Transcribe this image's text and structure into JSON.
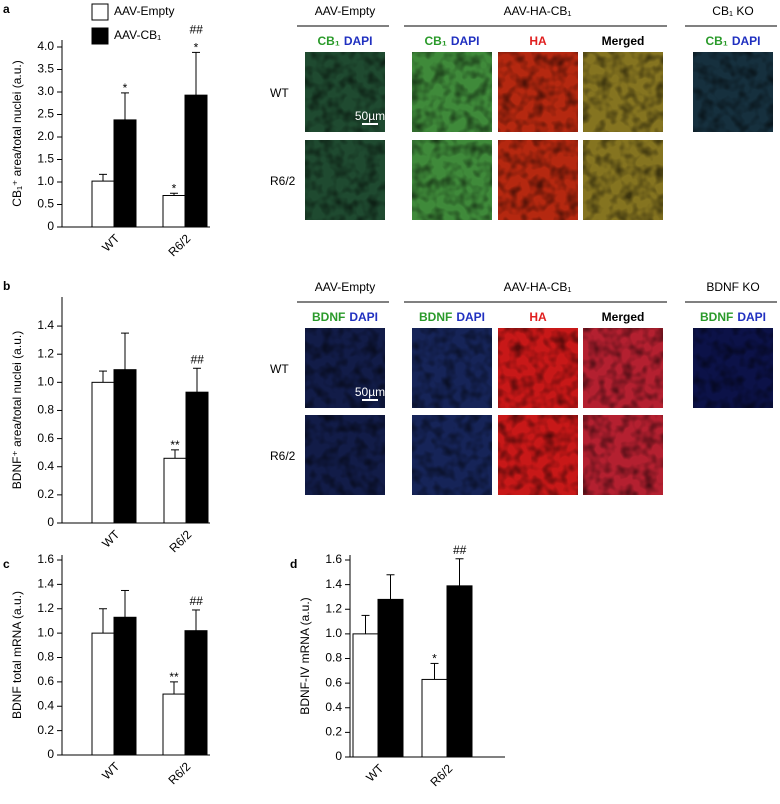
{
  "chart_data": [
    {
      "type": "bar",
      "panel": "a",
      "ylabel": "CB₁⁺ area/total nuclei (a.u.)",
      "categories": [
        "WT",
        "R6/2"
      ],
      "series": [
        {
          "name": "AAV-Empty",
          "color": "#ffffff",
          "values": [
            1.02,
            0.7
          ],
          "errors": [
            0.15,
            0.05
          ],
          "annotations": [
            [],
            [
              "*"
            ]
          ]
        },
        {
          "name": "AAV-CB₁",
          "color": "#000000",
          "values": [
            2.38,
            2.93
          ],
          "errors": [
            0.6,
            0.95
          ],
          "annotations": [
            [
              "*"
            ],
            [
              "*",
              "##"
            ]
          ]
        }
      ],
      "ylim": [
        0,
        4.0
      ],
      "yticks": [
        0,
        0.5,
        {
          "value": 1,
          "label": "1.0"
        },
        1.5,
        {
          "value": 2,
          "label": "2.0"
        },
        2.5,
        {
          "value": 3,
          "label": "3.0"
        },
        3.5,
        {
          "value": 4,
          "label": "4.0"
        }
      ]
    },
    {
      "type": "bar",
      "panel": "b",
      "ylabel": "BDNF⁺ area/total nuclei (a.u.)",
      "categories": [
        "WT",
        "R6/2"
      ],
      "series": [
        {
          "color": "#ffffff",
          "values": [
            1.0,
            0.46
          ],
          "errors": [
            0.08,
            0.06
          ],
          "annotations": [
            [],
            [
              "**"
            ]
          ]
        },
        {
          "color": "#000000",
          "values": [
            1.09,
            0.93
          ],
          "errors": [
            0.26,
            0.17
          ],
          "annotations": [
            [],
            [
              "##"
            ]
          ]
        }
      ],
      "ylim": [
        0,
        1.5
      ],
      "yticks": [
        0,
        0.2,
        0.4,
        0.6,
        0.8,
        {
          "value": 1,
          "label": "1.0"
        },
        1.2,
        1.4
      ]
    },
    {
      "type": "bar",
      "panel": "c",
      "ylabel": "BDNF total mRNA (a.u.)",
      "categories": [
        "WT",
        "R6/2"
      ],
      "series": [
        {
          "color": "#ffffff",
          "values": [
            1.0,
            0.5
          ],
          "errors": [
            0.2,
            0.1
          ],
          "annotations": [
            [],
            [
              "**"
            ]
          ]
        },
        {
          "color": "#000000",
          "values": [
            1.13,
            1.02
          ],
          "errors": [
            0.22,
            0.17
          ],
          "annotations": [
            [],
            [
              "##"
            ]
          ]
        }
      ],
      "ylim": [
        0,
        1.6
      ],
      "yticks": [
        0,
        0.2,
        0.4,
        0.6,
        0.8,
        {
          "value": 1,
          "label": "1.0"
        },
        1.2,
        1.4,
        1.6
      ]
    },
    {
      "type": "bar",
      "panel": "d",
      "ylabel": "BDNF-IV mRNA (a.u.)",
      "categories": [
        "WT",
        "R6/2"
      ],
      "series": [
        {
          "color": "#ffffff",
          "values": [
            1.0,
            0.63
          ],
          "errors": [
            0.15,
            0.13
          ],
          "annotations": [
            [],
            [
              "*"
            ]
          ]
        },
        {
          "color": "#000000",
          "values": [
            1.28,
            1.39
          ],
          "errors": [
            0.2,
            0.22
          ],
          "annotations": [
            [],
            [
              "##"
            ]
          ]
        }
      ],
      "ylim": [
        0,
        1.6
      ],
      "yticks": [
        0,
        0.2,
        0.4,
        0.6,
        0.8,
        {
          "value": 1,
          "label": "1.0"
        },
        1.2,
        1.4,
        1.6
      ]
    }
  ],
  "micrographs": [
    {
      "groups": [
        "AAV-Empty",
        "AAV-HA-CB₁",
        "CB₁ KO"
      ],
      "columns": [
        [
          "CB₁",
          "DAPI"
        ],
        [
          "CB₁",
          "DAPI"
        ],
        [
          "HA"
        ],
        [
          "Merged"
        ],
        [
          "CB₁",
          "DAPI"
        ]
      ],
      "rows": [
        "WT",
        "R6/2"
      ],
      "scale_bar": "50µm"
    },
    {
      "groups": [
        "AAV-Empty",
        "AAV-HA-CB₁",
        "BDNF KO"
      ],
      "columns": [
        [
          "BDNF",
          "DAPI"
        ],
        [
          "BDNF",
          "DAPI"
        ],
        [
          "HA"
        ],
        [
          "Merged"
        ],
        [
          "BDNF",
          "DAPI"
        ]
      ],
      "rows": [
        "WT",
        "R6/2"
      ],
      "scale_bar": "50µm"
    }
  ]
}
